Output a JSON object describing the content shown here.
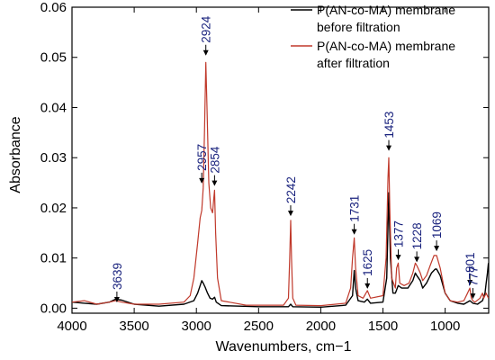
{
  "chart_data": {
    "type": "line",
    "title": "",
    "xlabel": "Wavenumbers, cm−1",
    "ylabel": "Absorbance",
    "xlim": [
      4000,
      650
    ],
    "ylim": [
      -0.001,
      0.06
    ],
    "x_reversed": true,
    "grid": false,
    "legend_placement": "top-right",
    "xticks": [
      4000,
      3500,
      3000,
      2500,
      2000,
      1500,
      1000
    ],
    "xtick_labels": [
      "4000",
      "3500",
      "3000",
      "2500",
      "2000",
      "1500",
      "1000"
    ],
    "yticks": [
      0.0,
      0.01,
      0.02,
      0.03,
      0.04,
      0.05,
      0.06
    ],
    "ytick_labels": [
      "0.00",
      "0.01",
      "0.02",
      "0.03",
      "0.04",
      "0.05",
      "0.06"
    ],
    "series": [
      {
        "name_line1": "P(AN-co-MA) membrane",
        "name_line2": "before filtration",
        "color": "#000000",
        "points": [
          [
            4000,
            0.0012
          ],
          [
            3900,
            0.001
          ],
          [
            3800,
            0.0008
          ],
          [
            3700,
            0.0012
          ],
          [
            3650,
            0.0018
          ],
          [
            3600,
            0.0016
          ],
          [
            3500,
            0.0008
          ],
          [
            3300,
            0.0004
          ],
          [
            3100,
            0.0008
          ],
          [
            3020,
            0.0015
          ],
          [
            2990,
            0.003
          ],
          [
            2970,
            0.0045
          ],
          [
            2957,
            0.0055
          ],
          [
            2945,
            0.005
          ],
          [
            2930,
            0.0042
          ],
          [
            2910,
            0.003
          ],
          [
            2890,
            0.002
          ],
          [
            2870,
            0.0018
          ],
          [
            2854,
            0.0022
          ],
          [
            2840,
            0.0012
          ],
          [
            2800,
            0.0005
          ],
          [
            2500,
            0.0003
          ],
          [
            2260,
            0.0003
          ],
          [
            2242,
            0.0008
          ],
          [
            2225,
            0.0003
          ],
          [
            2000,
            0.0002
          ],
          [
            1800,
            0.0006
          ],
          [
            1745,
            0.0025
          ],
          [
            1731,
            0.0075
          ],
          [
            1720,
            0.004
          ],
          [
            1700,
            0.0015
          ],
          [
            1650,
            0.0012
          ],
          [
            1625,
            0.0018
          ],
          [
            1600,
            0.001
          ],
          [
            1500,
            0.0012
          ],
          [
            1470,
            0.006
          ],
          [
            1453,
            0.023
          ],
          [
            1440,
            0.01
          ],
          [
            1420,
            0.003
          ],
          [
            1400,
            0.003
          ],
          [
            1377,
            0.0045
          ],
          [
            1350,
            0.004
          ],
          [
            1300,
            0.004
          ],
          [
            1260,
            0.0055
          ],
          [
            1240,
            0.007
          ],
          [
            1228,
            0.0065
          ],
          [
            1200,
            0.0055
          ],
          [
            1180,
            0.004
          ],
          [
            1150,
            0.005
          ],
          [
            1110,
            0.007
          ],
          [
            1080,
            0.0078
          ],
          [
            1069,
            0.0078
          ],
          [
            1040,
            0.0065
          ],
          [
            1000,
            0.003
          ],
          [
            960,
            0.0015
          ],
          [
            900,
            0.001
          ],
          [
            850,
            0.0008
          ],
          [
            801,
            0.0015
          ],
          [
            777,
            0.001
          ],
          [
            740,
            0.0008
          ],
          [
            700,
            0.0015
          ],
          [
            680,
            0.003
          ],
          [
            670,
            0.005
          ],
          [
            660,
            0.007
          ],
          [
            652,
            0.009
          ]
        ]
      },
      {
        "name_line1": "P(AN-co-MA) membrane",
        "name_line2": "after filtration",
        "color": "#c0392b",
        "points": [
          [
            4000,
            0.0012
          ],
          [
            3900,
            0.0015
          ],
          [
            3800,
            0.0008
          ],
          [
            3700,
            0.0012
          ],
          [
            3650,
            0.0015
          ],
          [
            3600,
            0.0012
          ],
          [
            3500,
            0.0008
          ],
          [
            3300,
            0.0008
          ],
          [
            3100,
            0.0012
          ],
          [
            3050,
            0.0025
          ],
          [
            3020,
            0.006
          ],
          [
            2990,
            0.013
          ],
          [
            2970,
            0.018
          ],
          [
            2957,
            0.0195
          ],
          [
            2945,
            0.024
          ],
          [
            2935,
            0.035
          ],
          [
            2924,
            0.049
          ],
          [
            2915,
            0.04
          ],
          [
            2900,
            0.025
          ],
          [
            2885,
            0.02
          ],
          [
            2870,
            0.019
          ],
          [
            2860,
            0.022
          ],
          [
            2854,
            0.0235
          ],
          [
            2845,
            0.015
          ],
          [
            2830,
            0.006
          ],
          [
            2800,
            0.0015
          ],
          [
            2600,
            0.0006
          ],
          [
            2300,
            0.0006
          ],
          [
            2260,
            0.002
          ],
          [
            2250,
            0.01
          ],
          [
            2242,
            0.0175
          ],
          [
            2235,
            0.01
          ],
          [
            2225,
            0.002
          ],
          [
            2200,
            0.0006
          ],
          [
            2000,
            0.0005
          ],
          [
            1800,
            0.001
          ],
          [
            1760,
            0.004
          ],
          [
            1745,
            0.01
          ],
          [
            1731,
            0.014
          ],
          [
            1720,
            0.008
          ],
          [
            1700,
            0.0025
          ],
          [
            1660,
            0.002
          ],
          [
            1625,
            0.0035
          ],
          [
            1600,
            0.002
          ],
          [
            1500,
            0.0025
          ],
          [
            1475,
            0.01
          ],
          [
            1460,
            0.026
          ],
          [
            1453,
            0.03
          ],
          [
            1445,
            0.02
          ],
          [
            1430,
            0.006
          ],
          [
            1400,
            0.004
          ],
          [
            1390,
            0.008
          ],
          [
            1377,
            0.009
          ],
          [
            1365,
            0.005
          ],
          [
            1330,
            0.0045
          ],
          [
            1290,
            0.005
          ],
          [
            1260,
            0.007
          ],
          [
            1240,
            0.009
          ],
          [
            1228,
            0.0085
          ],
          [
            1200,
            0.007
          ],
          [
            1180,
            0.0055
          ],
          [
            1150,
            0.0065
          ],
          [
            1120,
            0.0085
          ],
          [
            1090,
            0.0105
          ],
          [
            1069,
            0.0105
          ],
          [
            1040,
            0.008
          ],
          [
            1000,
            0.003
          ],
          [
            960,
            0.0015
          ],
          [
            900,
            0.0012
          ],
          [
            850,
            0.0015
          ],
          [
            820,
            0.003
          ],
          [
            801,
            0.004
          ],
          [
            790,
            0.002
          ],
          [
            777,
            0.0015
          ],
          [
            760,
            0.0012
          ],
          [
            720,
            0.002
          ],
          [
            700,
            0.003
          ],
          [
            690,
            0.002
          ],
          [
            670,
            0.003
          ],
          [
            652,
            0.002
          ]
        ]
      }
    ],
    "annotations": [
      {
        "text": "3639",
        "x": 3639,
        "y": 0.0008,
        "color": "#1a237e"
      },
      {
        "text": "2957",
        "x": 2957,
        "y": 0.0245,
        "color": "#1a237e"
      },
      {
        "text": "2924",
        "x": 2924,
        "y": 0.05,
        "color": "#1a237e"
      },
      {
        "text": "2854",
        "x": 2854,
        "y": 0.024,
        "color": "#1a237e"
      },
      {
        "text": "2242",
        "x": 2242,
        "y": 0.018,
        "color": "#1a237e"
      },
      {
        "text": "1731",
        "x": 1731,
        "y": 0.0143,
        "color": "#1a237e"
      },
      {
        "text": "1625",
        "x": 1625,
        "y": 0.0035,
        "color": "#1a237e"
      },
      {
        "text": "1453",
        "x": 1453,
        "y": 0.031,
        "color": "#1a237e"
      },
      {
        "text": "1377",
        "x": 1377,
        "y": 0.0092,
        "color": "#1a237e"
      },
      {
        "text": "1228",
        "x": 1228,
        "y": 0.0088,
        "color": "#1a237e"
      },
      {
        "text": "1069",
        "x": 1069,
        "y": 0.011,
        "color": "#1a237e"
      },
      {
        "text": "801",
        "x": 801,
        "y": 0.0042,
        "color": "#1a237e"
      },
      {
        "text": "777",
        "x": 777,
        "y": 0.0015,
        "color": "#1a237e"
      }
    ]
  }
}
